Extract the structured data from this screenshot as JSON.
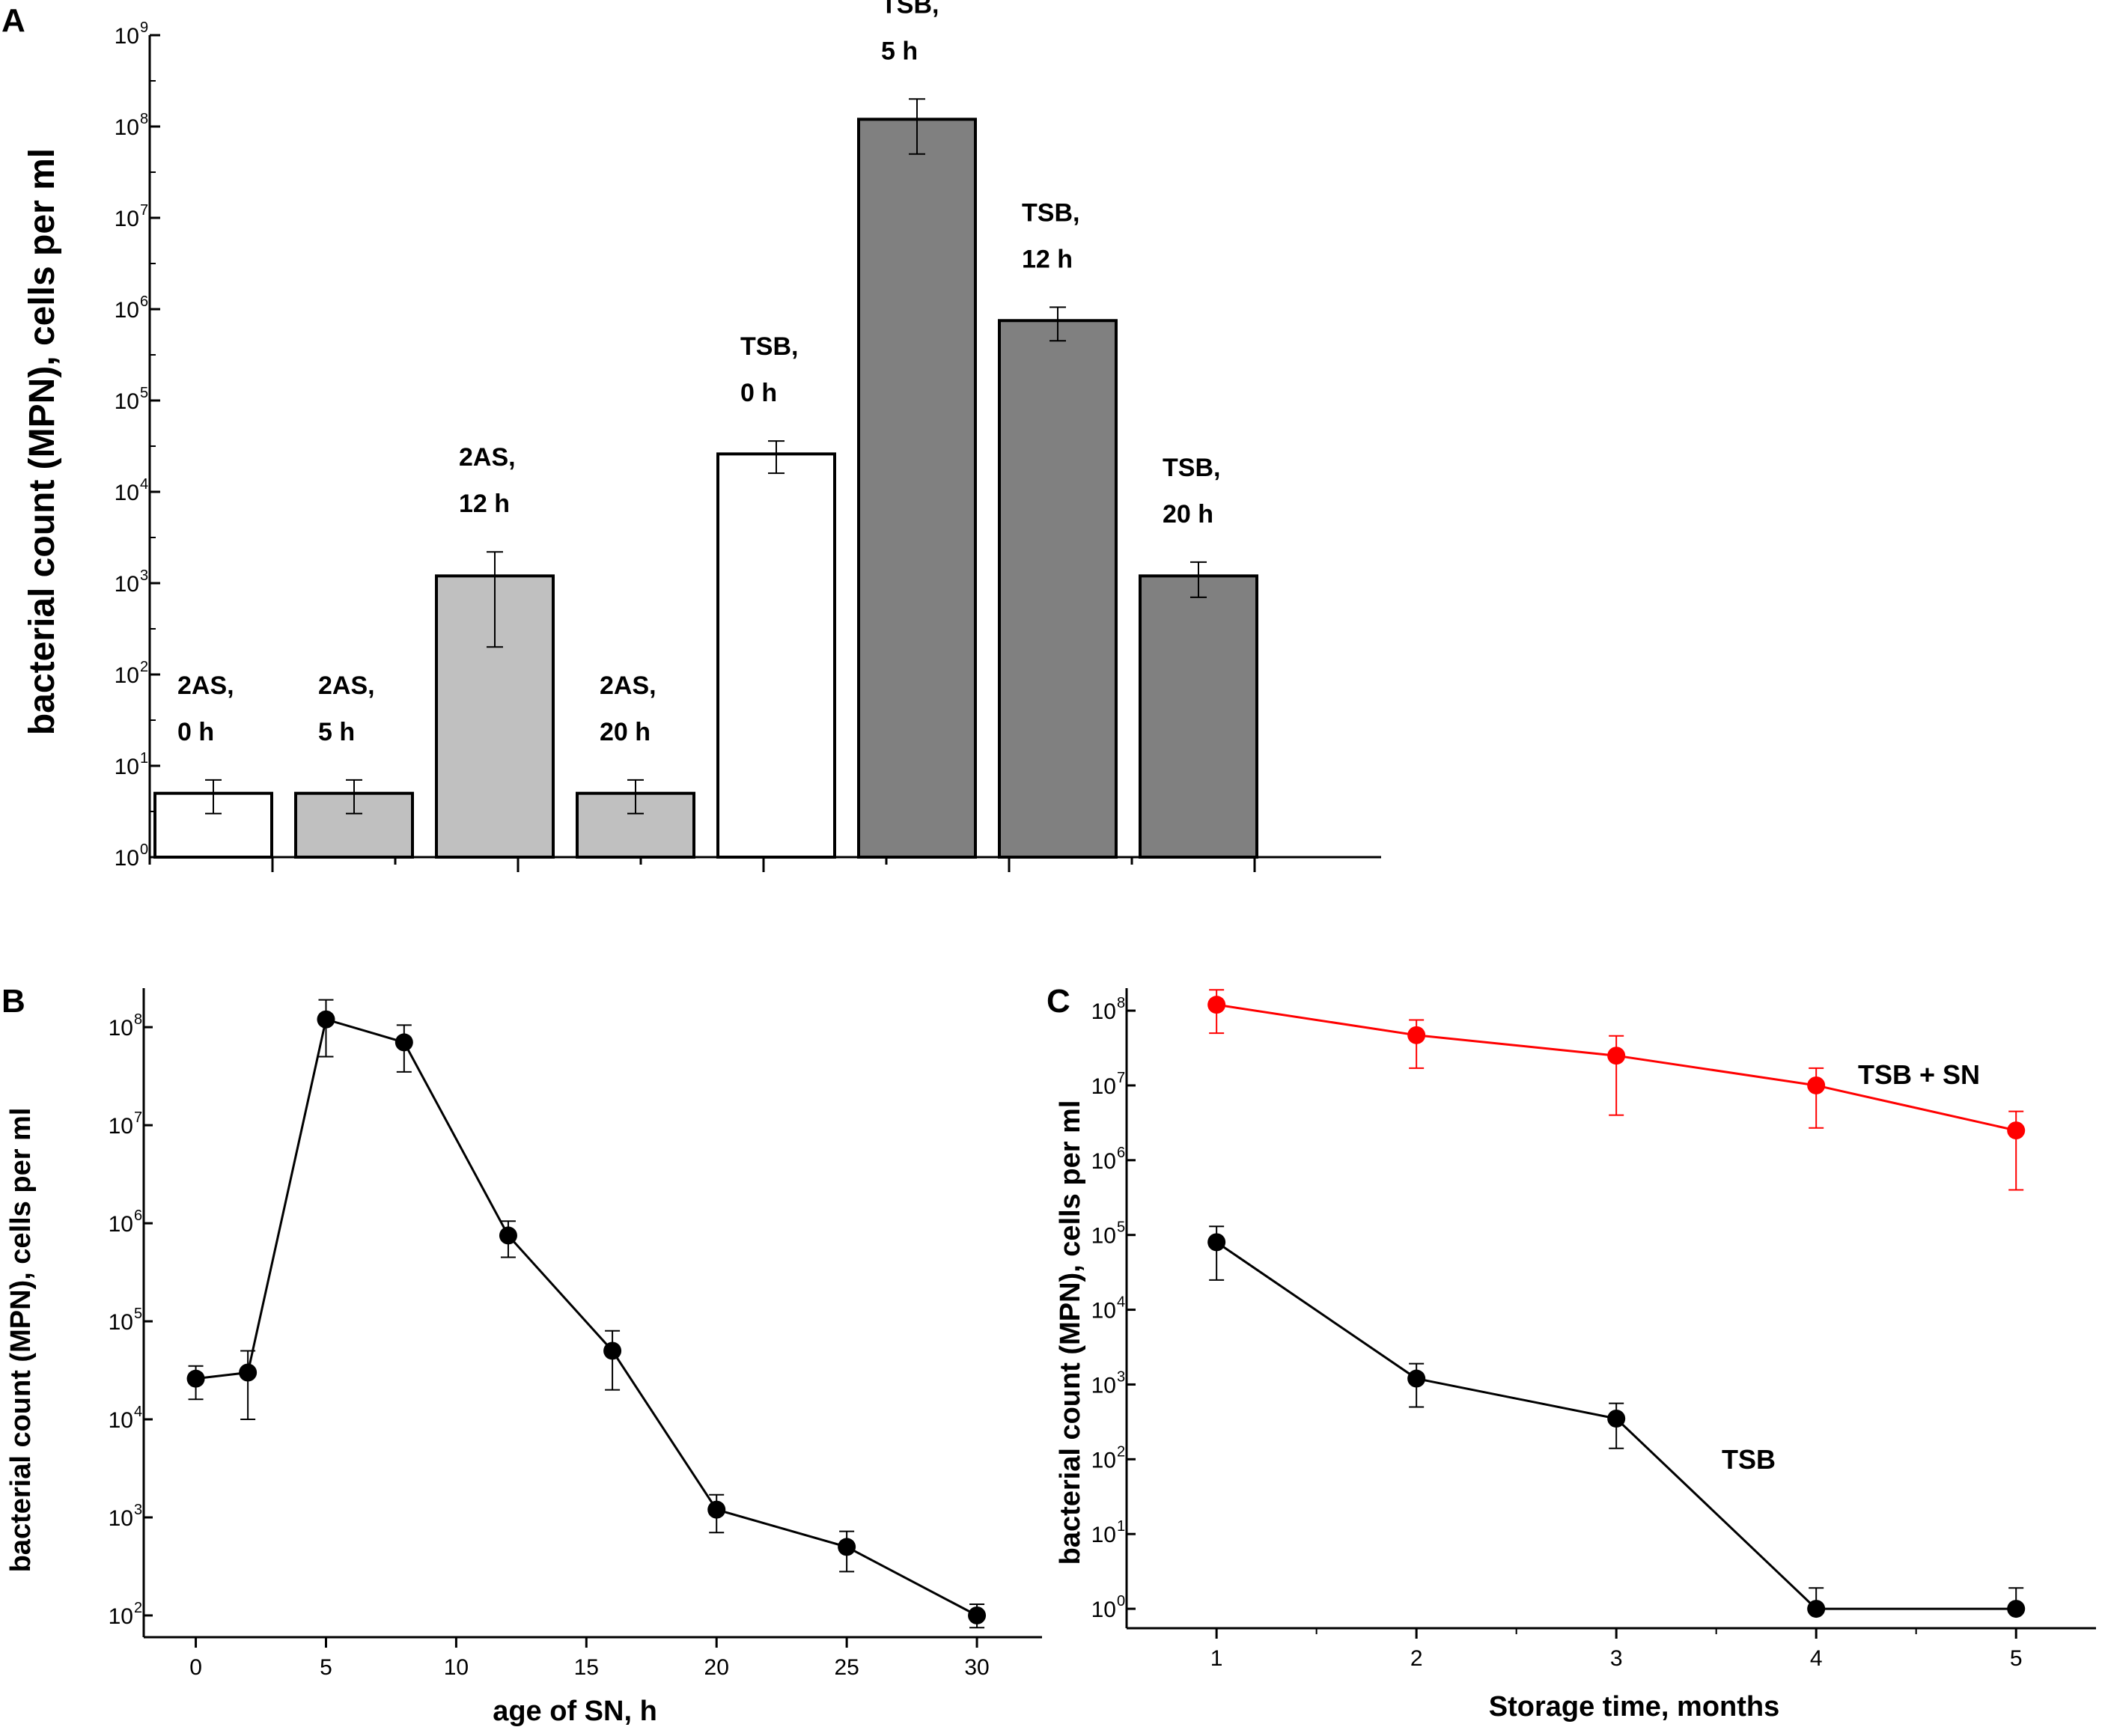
{
  "chart_data": [
    {
      "panel": "A",
      "type": "bar",
      "scale": "log",
      "ylabel": "bacterial count (MPN), cells per ml",
      "xlabel": "",
      "ylim": [
        1,
        1000000000
      ],
      "y_ticks": [
        {
          "base": "10",
          "exp": "0"
        },
        {
          "base": "10",
          "exp": "1"
        },
        {
          "base": "10",
          "exp": "2"
        },
        {
          "base": "10",
          "exp": "3"
        },
        {
          "base": "10",
          "exp": "4"
        },
        {
          "base": "10",
          "exp": "5"
        },
        {
          "base": "10",
          "exp": "6"
        },
        {
          "base": "10",
          "exp": "7"
        },
        {
          "base": "10",
          "exp": "8"
        },
        {
          "base": "10",
          "exp": "9"
        }
      ],
      "bars": [
        {
          "label1": "2AS,",
          "label2": "0 h",
          "value": 5,
          "err_low": 3,
          "err_high": 7,
          "fill": "#ffffff"
        },
        {
          "label1": "2AS,",
          "label2": "5 h",
          "value": 5,
          "err_low": 3,
          "err_high": 7,
          "fill": "#c0c0c0"
        },
        {
          "label1": "2AS,",
          "label2": "12 h",
          "value": 1200,
          "err_low": 200,
          "err_high": 2200,
          "fill": "#c0c0c0"
        },
        {
          "label1": "2AS,",
          "label2": "20 h",
          "value": 5,
          "err_low": 3,
          "err_high": 7,
          "fill": "#c0c0c0"
        },
        {
          "label1": "TSB,",
          "label2": "0 h",
          "value": 26000,
          "err_low": 16000,
          "err_high": 36000,
          "fill": "#ffffff"
        },
        {
          "label1": "TSB,",
          "label2": "5 h",
          "value": 120000000,
          "err_low": 50000000,
          "err_high": 200000000,
          "fill": "#808080"
        },
        {
          "label1": "TSB,",
          "label2": "12 h",
          "value": 750000,
          "err_low": 450000,
          "err_high": 1050000,
          "fill": "#808080"
        },
        {
          "label1": "TSB,",
          "label2": "20 h",
          "value": 1200,
          "err_low": 700,
          "err_high": 1700,
          "fill": "#808080"
        }
      ]
    },
    {
      "panel": "B",
      "type": "line",
      "scale": "log",
      "xlabel": "age of SN, h",
      "ylabel": "bacterial count (MPN), cells per ml",
      "xlim": [
        -2,
        32.5
      ],
      "ylim": [
        60,
        250000000
      ],
      "x_ticks": [
        "0",
        "5",
        "10",
        "15",
        "20",
        "25",
        "30"
      ],
      "y_ticks": [
        {
          "base": "10",
          "exp": "2"
        },
        {
          "base": "10",
          "exp": "3"
        },
        {
          "base": "10",
          "exp": "4"
        },
        {
          "base": "10",
          "exp": "5"
        },
        {
          "base": "10",
          "exp": "6"
        },
        {
          "base": "10",
          "exp": "7"
        },
        {
          "base": "10",
          "exp": "8"
        }
      ],
      "series": [
        {
          "name": "",
          "color": "#000000",
          "points": [
            {
              "x": 0,
              "y": 26000,
              "lo": 16000,
              "hi": 35000
            },
            {
              "x": 2,
              "y": 30000,
              "lo": 10000,
              "hi": 50000
            },
            {
              "x": 5,
              "y": 120000000,
              "lo": 50000000,
              "hi": 190000000
            },
            {
              "x": 8,
              "y": 70000000,
              "lo": 35000000,
              "hi": 105000000
            },
            {
              "x": 12,
              "y": 750000,
              "lo": 450000,
              "hi": 1050000
            },
            {
              "x": 16,
              "y": 50000,
              "lo": 20000,
              "hi": 80000
            },
            {
              "x": 20,
              "y": 1200,
              "lo": 700,
              "hi": 1700
            },
            {
              "x": 25,
              "y": 500,
              "lo": 280,
              "hi": 720
            },
            {
              "x": 30,
              "y": 100,
              "lo": 75,
              "hi": 130
            }
          ]
        }
      ]
    },
    {
      "panel": "C",
      "type": "line",
      "scale": "log",
      "xlabel": "Storage time, months",
      "ylabel": "bacterial count (MPN), cells per ml",
      "xlim": [
        0.55,
        5.4
      ],
      "ylim": [
        0.55,
        200000000
      ],
      "x_ticks": [
        "1",
        "2",
        "3",
        "4",
        "5"
      ],
      "y_ticks": [
        {
          "base": "10",
          "exp": "0"
        },
        {
          "base": "10",
          "exp": "1"
        },
        {
          "base": "10",
          "exp": "2"
        },
        {
          "base": "10",
          "exp": "3"
        },
        {
          "base": "10",
          "exp": "4"
        },
        {
          "base": "10",
          "exp": "5"
        },
        {
          "base": "10",
          "exp": "6"
        },
        {
          "base": "10",
          "exp": "7"
        },
        {
          "base": "10",
          "exp": "8"
        }
      ],
      "series": [
        {
          "name": "TSB + SN",
          "color": "#ff0000",
          "points": [
            {
              "x": 1,
              "y": 120000000,
              "lo": 50000000,
              "hi": 190000000
            },
            {
              "x": 2,
              "y": 47000000,
              "lo": 17000000,
              "hi": 75000000
            },
            {
              "x": 3,
              "y": 25000000,
              "lo": 4000000,
              "hi": 46000000
            },
            {
              "x": 4,
              "y": 10000000,
              "lo": 2700000,
              "hi": 17000000
            },
            {
              "x": 5,
              "y": 2500000,
              "lo": 400000,
              "hi": 4500000
            }
          ]
        },
        {
          "name": "TSB",
          "color": "#000000",
          "points": [
            {
              "x": 1,
              "y": 80000,
              "lo": 25000,
              "hi": 130000
            },
            {
              "x": 2,
              "y": 1200,
              "lo": 500,
              "hi": 1900
            },
            {
              "x": 3,
              "y": 350,
              "lo": 140,
              "hi": 560
            },
            {
              "x": 4,
              "y": 1,
              "lo": 1,
              "hi": 1.9
            },
            {
              "x": 5,
              "y": 1,
              "lo": 1,
              "hi": 1.9
            }
          ]
        }
      ]
    }
  ]
}
